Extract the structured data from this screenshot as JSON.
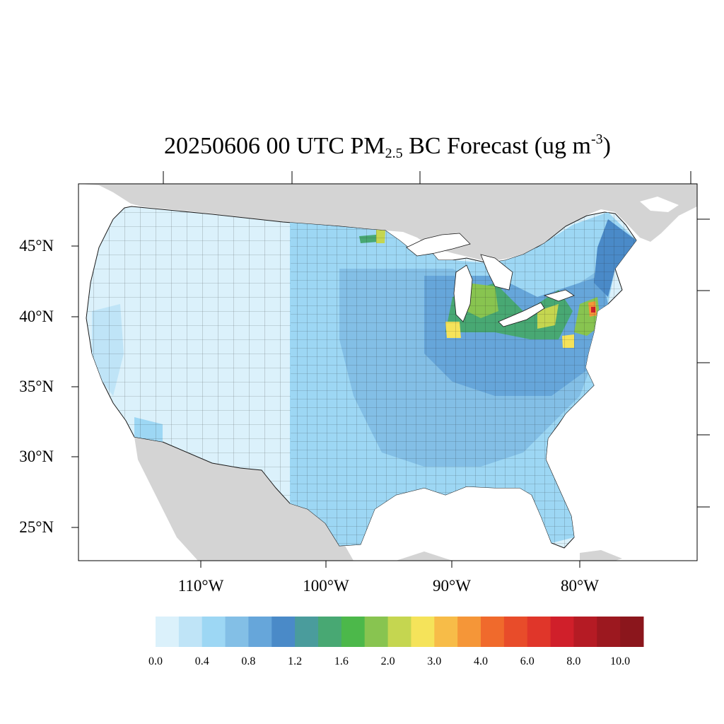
{
  "title": {
    "prefix": "20250606 00 UTC PM",
    "subscript": "2.5",
    "middle": " BC Forecast (ug m",
    "superscript": "-3",
    "suffix": ")"
  },
  "axes": {
    "lat_labels": [
      "45°N",
      "40°N",
      "35°N",
      "30°N",
      "25°N"
    ],
    "lon_labels": [
      "110°W",
      "100°W",
      "90°W",
      "80°W"
    ]
  },
  "colorbar": {
    "labels": [
      "0.0",
      "0.4",
      "0.8",
      "1.2",
      "1.6",
      "2.0",
      "3.0",
      "4.0",
      "6.0",
      "8.0",
      "10.0"
    ],
    "colors": [
      "#dbf1fb",
      "#bfe4f7",
      "#9dd7f4",
      "#83bfe6",
      "#66a6da",
      "#4a8ac8",
      "#4a9c9c",
      "#48a873",
      "#4cb84a",
      "#88c450",
      "#c5d650",
      "#f5e35a",
      "#f7bc48",
      "#f59638",
      "#f06a2c",
      "#e84c2a",
      "#e0362a",
      "#d01f2a",
      "#b51b24",
      "#9c181f",
      "#8b161c"
    ]
  },
  "colors": {
    "ocean": "#ffffff",
    "land_outside": "#d4d4d4",
    "county_border": "#1a1a1a"
  }
}
